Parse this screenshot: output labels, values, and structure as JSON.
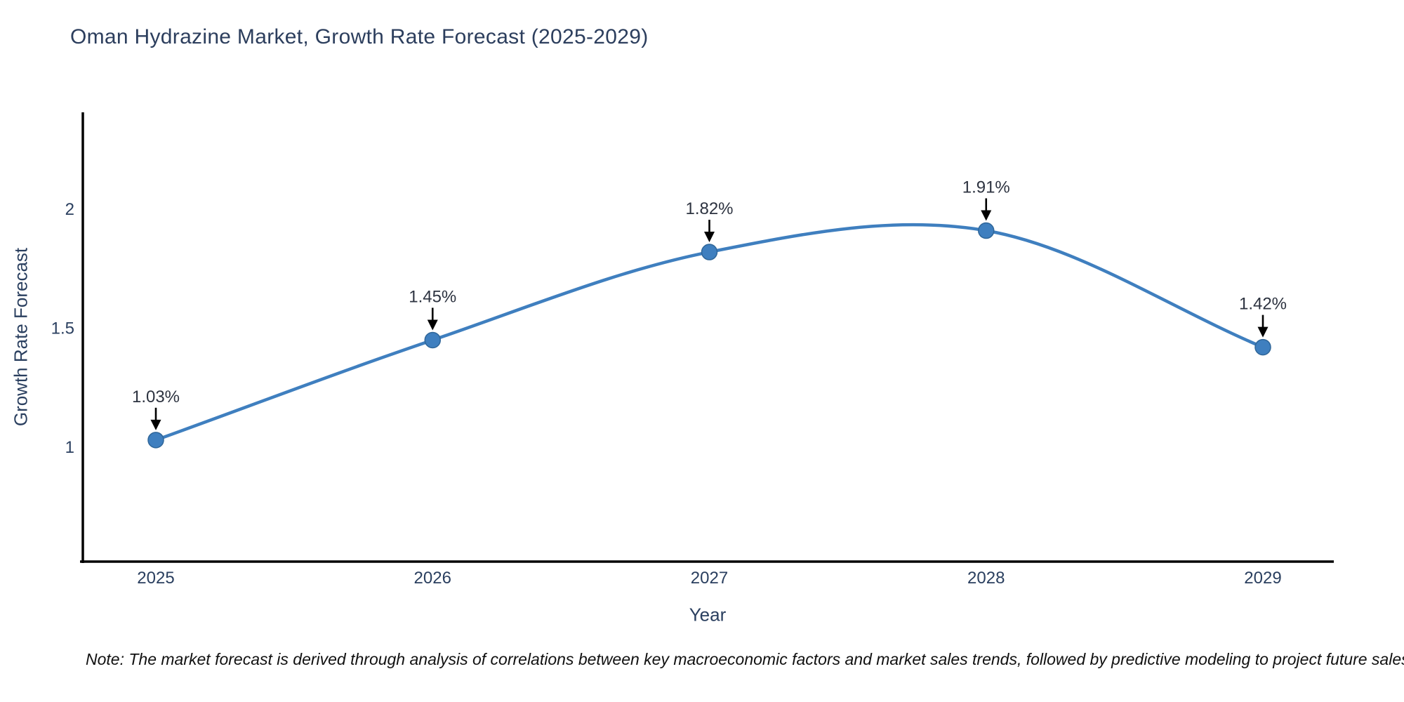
{
  "header": {
    "title": "Oman Hydrazine Market, Growth Rate Forecast (2025-2029)"
  },
  "footnote": "Note: The market forecast is derived through analysis of correlations between key macroeconomic factors and market sales trends, followed by predictive modeling to project future sales",
  "colors": {
    "line": "#3f7fbf",
    "marker_fill": "#3f7fbf",
    "marker_edge": "#2f6699",
    "arrow": "#000000",
    "axis_line": "#000000",
    "tick_text": "#2a3f5f",
    "title_text": "#2c3e5d"
  },
  "chart_data": {
    "type": "line",
    "title": "Oman Hydrazine Market, Growth Rate Forecast (2025-2029)",
    "xlabel": "Year",
    "ylabel": "Growth Rate Forecast",
    "categories": [
      "2025",
      "2026",
      "2027",
      "2028",
      "2029"
    ],
    "values": [
      1.03,
      1.45,
      1.82,
      1.91,
      1.42
    ],
    "point_labels": [
      "1.03%",
      "1.45%",
      "1.82%",
      "1.91%",
      "1.42%"
    ],
    "ytick_values": [
      1,
      1.5,
      2
    ],
    "ytick_labels": [
      "1",
      "1.5",
      "2"
    ],
    "ylim": [
      0.52,
      2.41
    ],
    "line_shape": "spline",
    "markers": true,
    "grid": false,
    "legend": "none",
    "annotations": "arrow-down-to-each-point"
  }
}
